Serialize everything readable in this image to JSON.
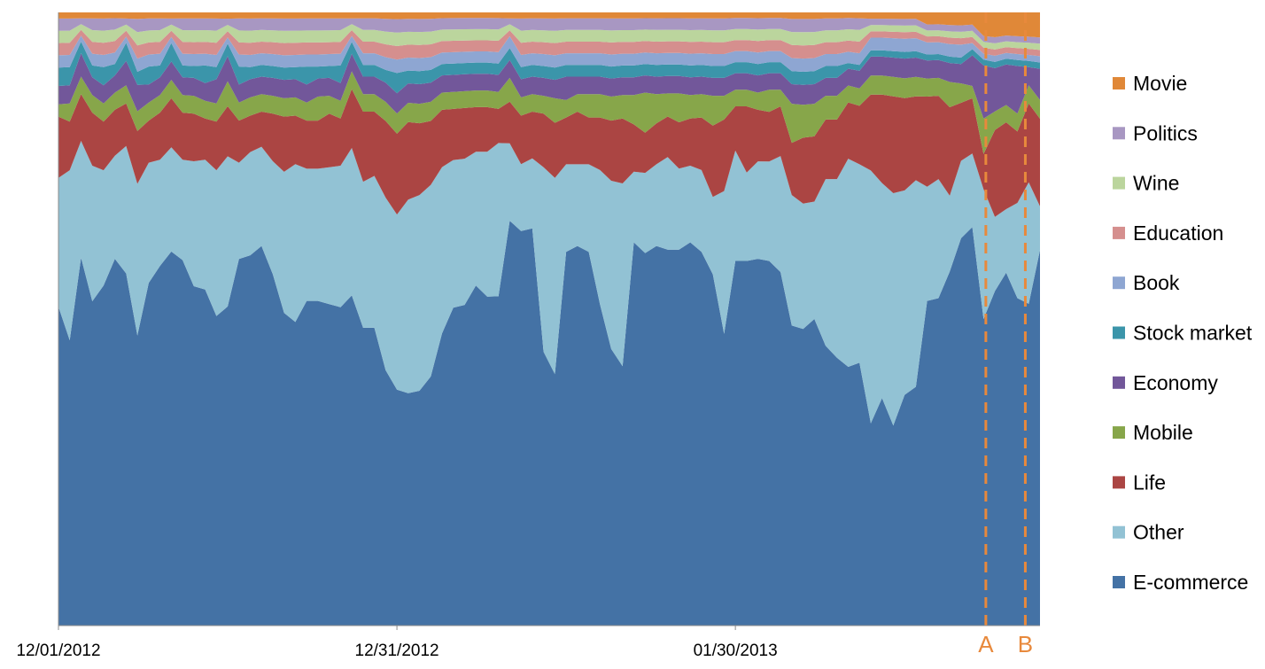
{
  "chart_data": {
    "type": "area",
    "stacking": "percent",
    "x_tick_labels": [
      "12/01/2012",
      "12/31/2012",
      "01/30/2013"
    ],
    "x_ticks": [
      0,
      30,
      60
    ],
    "xlim": [
      0,
      87
    ],
    "ylim": [
      0,
      100
    ],
    "grid": false,
    "legend_position": "right",
    "markers": [
      {
        "label": "A",
        "x": 82.2,
        "color": "#E8893C"
      },
      {
        "label": "B",
        "x": 85.7,
        "color": "#E8893C"
      }
    ],
    "series": [
      {
        "name": "E-commerce",
        "color": "#4472A5",
        "values": [
          52,
          47,
          63,
          55,
          56,
          64,
          58,
          44,
          57,
          61,
          61,
          62,
          57,
          57,
          51,
          51,
          61,
          61,
          65,
          59,
          51,
          50,
          54,
          54,
          54,
          54,
          56,
          51,
          51,
          40,
          35,
          36,
          36,
          39,
          51,
          56,
          57,
          61,
          59,
          58,
          68,
          65,
          68,
          46,
          41,
          64,
          65,
          64,
          55,
          46,
          44,
          65,
          65,
          65,
          65,
          65,
          65,
          64,
          59,
          49,
          66,
          66,
          64,
          66,
          64,
          46,
          45,
          47,
          47,
          45,
          46,
          45,
          32,
          36,
          31,
          35,
          37,
          54,
          55,
          56,
          60,
          65,
          52,
          54,
          61,
          55,
          53,
          60
        ]
      },
      {
        "name": "Other",
        "color": "#92C2D4",
        "values": [
          21,
          28,
          20,
          23,
          19,
          18,
          21,
          23,
          20,
          18,
          17,
          17,
          21,
          22,
          24,
          24,
          16,
          17,
          17,
          19,
          23,
          26,
          22,
          22,
          23,
          24,
          25,
          25,
          26,
          27,
          26,
          30,
          30,
          30,
          29,
          26,
          26,
          24,
          26,
          27,
          13,
          11,
          12,
          31,
          32,
          15,
          14,
          15,
          23,
          28,
          31,
          12,
          14,
          14,
          16,
          14,
          13,
          14,
          13,
          24,
          20,
          16,
          17,
          18,
          21,
          20,
          19,
          18,
          28,
          30,
          37,
          34,
          40,
          34,
          36,
          31,
          32,
          19,
          20,
          12,
          12,
          12,
          22,
          12,
          11,
          16,
          20,
          7
        ]
      },
      {
        "name": "Life",
        "color": "#AB4543",
        "values": [
          10,
          8,
          8,
          9,
          8,
          8,
          7,
          8,
          7,
          8,
          8,
          8,
          8,
          7,
          8,
          8,
          7,
          6,
          6,
          8,
          9,
          8,
          8,
          8,
          9,
          8,
          10,
          12,
          11,
          12,
          12,
          12,
          11,
          10,
          10,
          9,
          9,
          8,
          8,
          6,
          7,
          8,
          8,
          9,
          9,
          8,
          9,
          8,
          9,
          10,
          11,
          8,
          7,
          7,
          7,
          8,
          8,
          9,
          12,
          12,
          8,
          12,
          9,
          9,
          9,
          8,
          10,
          10,
          10,
          10,
          10,
          10,
          12,
          14,
          15,
          14,
          13,
          15,
          14,
          14,
          9,
          9,
          6,
          14,
          15,
          12,
          13,
          14
        ]
      },
      {
        "name": "Mobile",
        "color": "#87A64A",
        "values": [
          2,
          3,
          3,
          3,
          3,
          3,
          3,
          3,
          3,
          3,
          3,
          3,
          3,
          3,
          3,
          4,
          3,
          3,
          3,
          3,
          3,
          3,
          3,
          4,
          3,
          3,
          3,
          3,
          3,
          3,
          3,
          3,
          3,
          3,
          3,
          3,
          3,
          3,
          3,
          3,
          4,
          3,
          3,
          3,
          4,
          3,
          3,
          4,
          4,
          4,
          4,
          5,
          7,
          5,
          4,
          5,
          4,
          4,
          5,
          4,
          3,
          3,
          3,
          4,
          3,
          6,
          5,
          5,
          4,
          4,
          3,
          3,
          3,
          3,
          3,
          3,
          3,
          3,
          3,
          4,
          3,
          2,
          6,
          3,
          3,
          3,
          3,
          3
        ]
      },
      {
        "name": "Economy",
        "color": "#72579A",
        "values": [
          3,
          3,
          4,
          3,
          3,
          3,
          4,
          4,
          3,
          3,
          3,
          3,
          3,
          3,
          4,
          4,
          3,
          3,
          3,
          3,
          3,
          3,
          3,
          3,
          3,
          3,
          3,
          3,
          3,
          3,
          3,
          3,
          3,
          3,
          3,
          3,
          3,
          3,
          3,
          3,
          3,
          3,
          3,
          3,
          3,
          4,
          3,
          3,
          3,
          3,
          3,
          3,
          3,
          3,
          3,
          3,
          3,
          3,
          3,
          3,
          3,
          3,
          3,
          3,
          3,
          3,
          3,
          3,
          3,
          3,
          3,
          3,
          3,
          3,
          3,
          3,
          3,
          3,
          3,
          3,
          3,
          5,
          9,
          7,
          7,
          8,
          3,
          5
        ]
      },
      {
        "name": "Stock market",
        "color": "#3B95AA",
        "values": [
          3,
          3,
          2,
          2,
          3,
          2,
          3,
          2,
          3,
          2,
          3,
          2,
          2,
          3,
          2,
          2,
          3,
          2,
          2,
          2,
          2,
          2,
          3,
          2,
          2,
          3,
          2,
          2,
          2,
          2,
          3,
          2,
          2,
          2,
          2,
          2,
          2,
          2,
          2,
          2,
          2,
          2,
          2,
          2,
          2,
          2,
          2,
          2,
          2,
          2,
          2,
          2,
          2,
          2,
          2,
          2,
          2,
          2,
          2,
          2,
          2,
          2,
          2,
          2,
          2,
          2,
          2,
          2,
          2,
          2,
          1,
          1,
          1,
          1,
          1,
          1,
          1,
          1,
          1,
          1,
          1,
          1,
          1,
          1,
          1,
          1,
          1,
          1
        ]
      },
      {
        "name": "Book",
        "color": "#8EA6D2",
        "values": [
          2,
          2,
          1,
          2,
          2,
          2,
          1,
          2,
          2,
          2,
          1,
          2,
          2,
          2,
          2,
          1,
          2,
          2,
          2,
          2,
          2,
          2,
          2,
          2,
          2,
          2,
          1,
          2,
          2,
          2,
          2,
          2,
          2,
          2,
          2,
          2,
          2,
          2,
          2,
          2,
          2,
          2,
          2,
          2,
          2,
          2,
          2,
          2,
          2,
          2,
          2,
          2,
          2,
          2,
          2,
          2,
          2,
          2,
          2,
          2,
          2,
          2,
          2,
          2,
          2,
          2,
          2,
          2,
          2,
          2,
          2,
          2,
          2,
          2,
          2,
          2,
          2,
          2,
          2,
          2,
          2,
          1,
          1,
          1,
          1,
          1,
          1,
          1
        ]
      },
      {
        "name": "Education",
        "color": "#D58F8E",
        "values": [
          2,
          2,
          1,
          2,
          2,
          2,
          1,
          2,
          2,
          2,
          1,
          2,
          2,
          2,
          2,
          1,
          2,
          2,
          2,
          2,
          2,
          2,
          2,
          2,
          2,
          2,
          1,
          2,
          2,
          2,
          2,
          2,
          2,
          2,
          2,
          2,
          2,
          2,
          2,
          2,
          1,
          2,
          2,
          2,
          2,
          2,
          2,
          2,
          2,
          2,
          2,
          2,
          2,
          2,
          2,
          2,
          2,
          2,
          2,
          2,
          2,
          2,
          2,
          2,
          2,
          2,
          2,
          2,
          2,
          2,
          2,
          2,
          1,
          1,
          1,
          1,
          1,
          1,
          1,
          1,
          1,
          1,
          1,
          1,
          1,
          1,
          1,
          1
        ]
      },
      {
        "name": "Wine",
        "color": "#BBD59D",
        "values": [
          2,
          2,
          1,
          2,
          2,
          2,
          1,
          2,
          2,
          2,
          1,
          2,
          2,
          2,
          2,
          1,
          2,
          2,
          2,
          2,
          2,
          2,
          2,
          2,
          2,
          2,
          1,
          2,
          2,
          2,
          2,
          2,
          2,
          2,
          2,
          2,
          2,
          2,
          2,
          2,
          1,
          2,
          2,
          2,
          2,
          2,
          2,
          2,
          2,
          2,
          2,
          2,
          2,
          2,
          2,
          2,
          2,
          2,
          2,
          2,
          2,
          2,
          2,
          2,
          2,
          2,
          2,
          2,
          2,
          2,
          2,
          2,
          1,
          1,
          1,
          1,
          1,
          1,
          1,
          1,
          1,
          1,
          1,
          1,
          1,
          1,
          1,
          1
        ]
      },
      {
        "name": "Politics",
        "color": "#A897C2",
        "values": [
          2,
          2,
          1,
          2,
          2,
          2,
          1,
          2,
          2,
          2,
          1,
          2,
          2,
          2,
          2,
          1,
          2,
          2,
          2,
          2,
          2,
          2,
          2,
          2,
          2,
          2,
          1,
          2,
          2,
          2,
          2,
          2,
          2,
          2,
          2,
          2,
          2,
          2,
          2,
          2,
          1,
          2,
          2,
          2,
          2,
          2,
          2,
          2,
          2,
          2,
          2,
          2,
          2,
          2,
          2,
          2,
          2,
          2,
          2,
          2,
          2,
          2,
          2,
          2,
          2,
          2,
          2,
          2,
          2,
          2,
          2,
          2,
          1,
          1,
          1,
          1,
          1,
          1,
          1,
          1,
          1,
          1,
          1,
          1,
          1,
          1,
          1,
          1
        ]
      },
      {
        "name": "Movie",
        "color": "#E08838",
        "values": [
          1,
          1,
          1,
          1,
          1,
          1,
          1,
          1,
          1,
          1,
          1,
          1,
          1,
          1,
          1,
          1,
          1,
          1,
          1,
          1,
          1,
          1,
          1,
          1,
          1,
          1,
          1,
          1,
          1,
          1,
          1,
          1,
          1,
          1,
          1,
          1,
          1,
          1,
          1,
          1,
          1,
          1,
          1,
          1,
          1,
          1,
          1,
          1,
          1,
          1,
          1,
          1,
          1,
          1,
          1,
          1,
          1,
          1,
          1,
          1,
          1,
          1,
          1,
          1,
          1,
          1,
          1,
          1,
          1,
          1,
          1,
          1,
          1,
          1,
          1,
          1,
          1,
          2,
          2,
          2,
          2,
          2,
          4,
          4,
          4,
          4,
          4,
          4
        ]
      }
    ]
  }
}
